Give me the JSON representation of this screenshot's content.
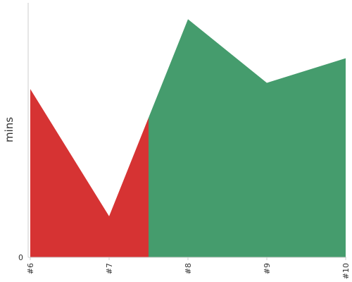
{
  "chart_data": {
    "type": "area",
    "categories": [
      "#6",
      "#7",
      "#8",
      "#9",
      "#10"
    ],
    "values": [
      41,
      10,
      58,
      42.5,
      48.5
    ],
    "threshold_x": 7.5,
    "color_below_threshold": "#d63333",
    "color_above_threshold": "#459c6d",
    "ylabel": "mins",
    "y_ticks": [
      {
        "value": 0,
        "label": "0"
      }
    ],
    "ylim": [
      0,
      62
    ],
    "grid": false,
    "legend": "none"
  }
}
